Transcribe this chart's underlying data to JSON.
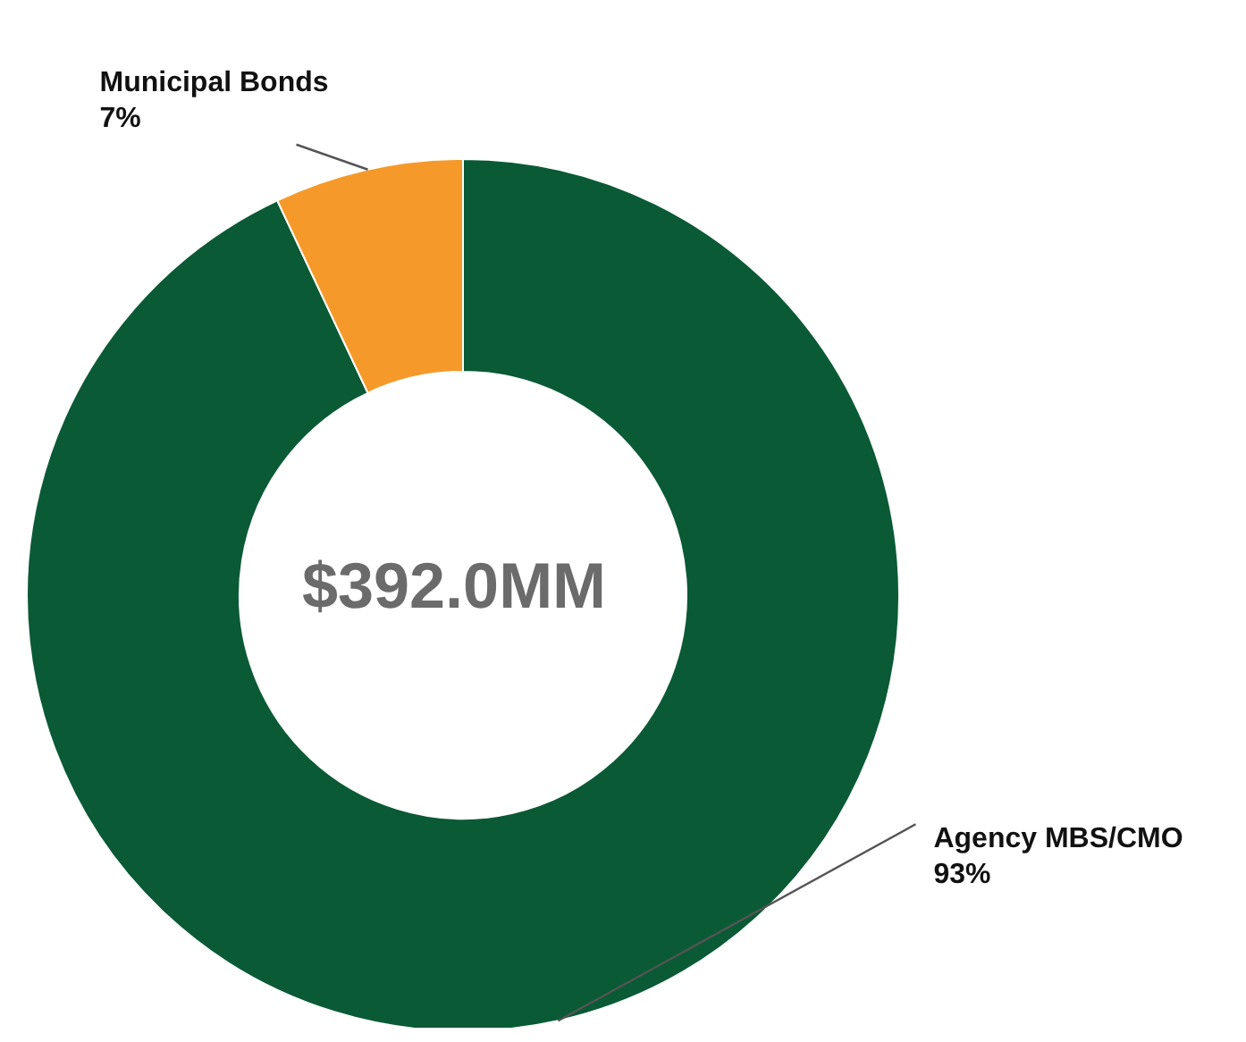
{
  "chart_data": {
    "type": "donut",
    "categories": [
      "Agency MBS/CMO",
      "Municipal Bonds"
    ],
    "values": [
      93,
      7
    ],
    "value_labels": [
      "93%",
      "7%"
    ],
    "colors": [
      "#0a5a35",
      "#f59a2a"
    ],
    "annotations": [
      "$392.0MM"
    ],
    "legend": false
  }
}
